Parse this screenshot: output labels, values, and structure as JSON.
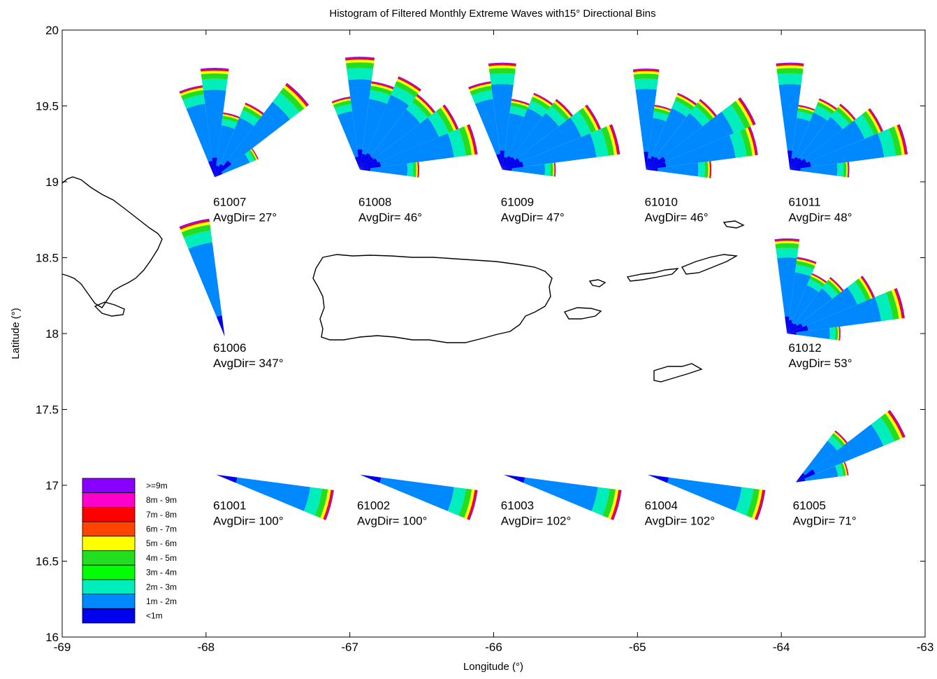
{
  "chart_data": {
    "type": "other",
    "title": "Histogram of Filtered Monthly Extreme Waves with15° Directional Bins",
    "xlabel": "Longitude (°)",
    "ylabel": "Latitude (°)",
    "xlim": [
      -69,
      -63
    ],
    "ylim": [
      16,
      20
    ],
    "xticks": [
      "-69",
      "-68",
      "-67",
      "-66",
      "-65",
      "-64",
      "-63"
    ],
    "yticks": [
      "16",
      "16.5",
      "17",
      "17.5",
      "18",
      "18.5",
      "19",
      "19.5",
      "20"
    ],
    "legend": {
      "placement": "bottom-left",
      "classes": [
        {
          "label": ">=9m",
          "color": "#8800ff"
        },
        {
          "label": "8m - 9m",
          "color": "#ff00cc"
        },
        {
          "label": "7m - 8m",
          "color": "#ff0000"
        },
        {
          "label": "6m - 7m",
          "color": "#ff4400"
        },
        {
          "label": "5m - 6m",
          "color": "#ffff00"
        },
        {
          "label": "4m - 5m",
          "color": "#22dd22"
        },
        {
          "label": "3m - 4m",
          "color": "#00ff00"
        },
        {
          "label": "2m - 3m",
          "color": "#00eebb"
        },
        {
          "label": "1m - 2m",
          "color": "#0088ff"
        },
        {
          "label": "<1m",
          "color": "#0000ee"
        }
      ]
    },
    "stations": [
      {
        "id": "61007",
        "avg_label": "AvgDir= 27°",
        "lon": -67.94,
        "lat": 19.03,
        "avg_dir": 27,
        "dirs": [
          345,
          0,
          15,
          30,
          45,
          60
        ],
        "radii": [
          0.78,
          0.92,
          0.55,
          0.68,
          1.0,
          0.4
        ]
      },
      {
        "id": "61008",
        "avg_label": "AvgDir= 46°",
        "lon": -66.93,
        "lat": 19.08,
        "avg_dir": 46,
        "dirs": [
          345,
          0,
          15,
          30,
          45,
          60,
          75,
          90
        ],
        "radii": [
          0.62,
          0.95,
          0.75,
          0.85,
          0.8,
          0.9,
          1.0,
          0.5
        ]
      },
      {
        "id": "61009",
        "avg_label": "AvgDir= 47°",
        "lon": -65.94,
        "lat": 19.08,
        "avg_dir": 47,
        "dirs": [
          345,
          0,
          15,
          30,
          45,
          60,
          75,
          90
        ],
        "radii": [
          0.75,
          0.9,
          0.6,
          0.7,
          0.75,
          0.9,
          1.0,
          0.45
        ]
      },
      {
        "id": "61010",
        "avg_label": "AvgDir= 46°",
        "lon": -64.94,
        "lat": 19.08,
        "avg_dir": 46,
        "dirs": [
          0,
          15,
          30,
          45,
          60,
          75,
          90
        ],
        "radii": [
          0.85,
          0.55,
          0.7,
          0.75,
          1.0,
          0.95,
          0.55
        ]
      },
      {
        "id": "61011",
        "avg_label": "AvgDir= 48°",
        "lon": -63.94,
        "lat": 19.08,
        "avg_dir": 48,
        "dirs": [
          0,
          15,
          30,
          45,
          60,
          75,
          90
        ],
        "radii": [
          0.9,
          0.55,
          0.65,
          0.7,
          0.85,
          1.0,
          0.5
        ]
      },
      {
        "id": "61006",
        "avg_label": "AvgDir= 347°",
        "lon": -67.87,
        "lat": 17.98,
        "avg_dir": 347,
        "dirs": [
          345
        ],
        "radii": [
          1.0
        ]
      },
      {
        "id": "61012",
        "avg_label": "AvgDir= 53°",
        "lon": -63.96,
        "lat": 18.0,
        "avg_dir": 53,
        "dirs": [
          0,
          15,
          30,
          45,
          60,
          75,
          90
        ],
        "radii": [
          0.8,
          0.65,
          0.55,
          0.6,
          0.8,
          1.0,
          0.45
        ]
      },
      {
        "id": "61001",
        "avg_label": "AvgDir= 100°",
        "lon": -67.93,
        "lat": 17.07,
        "avg_dir": 100,
        "dirs": [
          105
        ],
        "radii": [
          1.0
        ]
      },
      {
        "id": "61002",
        "avg_label": "AvgDir= 100°",
        "lon": -66.93,
        "lat": 17.07,
        "avg_dir": 100,
        "dirs": [
          105
        ],
        "radii": [
          1.0
        ]
      },
      {
        "id": "61003",
        "avg_label": "AvgDir= 102°",
        "lon": -65.93,
        "lat": 17.07,
        "avg_dir": 102,
        "dirs": [
          105
        ],
        "radii": [
          1.0
        ]
      },
      {
        "id": "61004",
        "avg_label": "AvgDir= 102°",
        "lon": -64.93,
        "lat": 17.07,
        "avg_dir": 102,
        "dirs": [
          105
        ],
        "radii": [
          1.0
        ]
      },
      {
        "id": "61005",
        "avg_label": "AvgDir= 71°",
        "lon": -63.9,
        "lat": 17.02,
        "avg_dir": 71,
        "dirs": [
          45,
          60,
          75
        ],
        "radii": [
          0.55,
          1.0,
          0.45
        ]
      }
    ]
  }
}
